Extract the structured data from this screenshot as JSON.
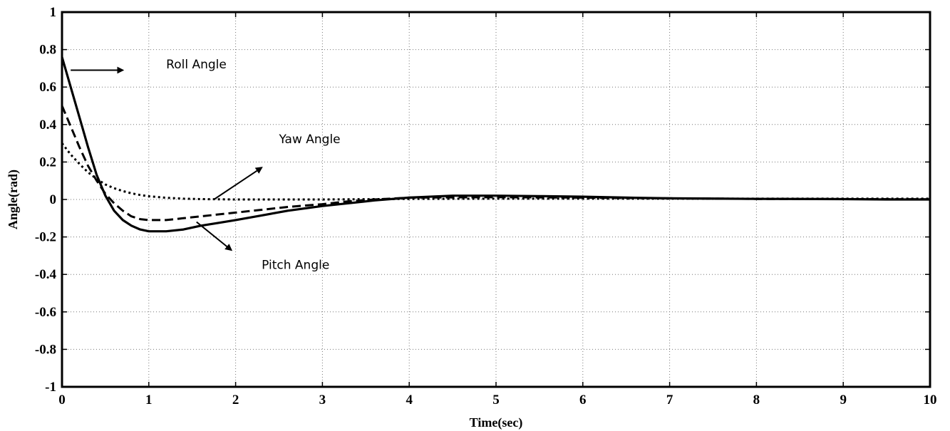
{
  "chart_data": {
    "type": "line",
    "title": "",
    "xlabel": "Time(sec)",
    "ylabel": "Angle(rad)",
    "xlim": [
      0,
      10
    ],
    "ylim": [
      -1,
      1
    ],
    "grid": true,
    "xticks": [
      "0",
      "1",
      "2",
      "3",
      "4",
      "5",
      "6",
      "7",
      "8",
      "9",
      "10"
    ],
    "yticks": [
      "1",
      "0.8",
      "0.6",
      "0.4",
      "0.2",
      "0",
      "-0.2",
      "-0.4",
      "-0.6",
      "-0.8",
      "-1"
    ],
    "series": [
      {
        "name": "Roll Angle",
        "style": "solid",
        "x": [
          0,
          0.1,
          0.2,
          0.3,
          0.4,
          0.5,
          0.6,
          0.7,
          0.8,
          0.9,
          1.0,
          1.1,
          1.2,
          1.4,
          1.6,
          1.8,
          2.0,
          2.3,
          2.6,
          3.0,
          3.3,
          3.6,
          4.0,
          4.5,
          5.0,
          5.5,
          6.0,
          6.5,
          7.0,
          8.0,
          9.0,
          9.5,
          10.0
        ],
        "y": [
          0.76,
          0.6,
          0.44,
          0.28,
          0.13,
          0.02,
          -0.06,
          -0.11,
          -0.14,
          -0.16,
          -0.17,
          -0.17,
          -0.17,
          -0.16,
          -0.14,
          -0.125,
          -0.11,
          -0.085,
          -0.06,
          -0.035,
          -0.02,
          -0.005,
          0.01,
          0.02,
          0.02,
          0.018,
          0.015,
          0.01,
          0.006,
          0.003,
          0.002,
          0.0,
          0.0
        ]
      },
      {
        "name": "Pitch Angle",
        "style": "dashed",
        "x": [
          0,
          0.1,
          0.2,
          0.3,
          0.4,
          0.5,
          0.6,
          0.7,
          0.8,
          0.9,
          1.0,
          1.2,
          1.4,
          1.6,
          1.8,
          2.0,
          2.3,
          2.6,
          3.0,
          3.3,
          3.6,
          4.0,
          5.0,
          6.0,
          7.0,
          8.0,
          10.0
        ],
        "y": [
          0.5,
          0.39,
          0.28,
          0.18,
          0.1,
          0.03,
          -0.02,
          -0.06,
          -0.09,
          -0.105,
          -0.11,
          -0.11,
          -0.1,
          -0.09,
          -0.08,
          -0.07,
          -0.055,
          -0.04,
          -0.025,
          -0.01,
          0.0,
          0.01,
          0.012,
          0.01,
          0.006,
          0.003,
          0.001
        ]
      },
      {
        "name": "Yaw Angle",
        "style": "dotted",
        "x": [
          0,
          0.1,
          0.2,
          0.3,
          0.4,
          0.5,
          0.6,
          0.7,
          0.8,
          0.9,
          1.0,
          1.2,
          1.4,
          1.6,
          1.8,
          2.0,
          2.5,
          3.0,
          4.0,
          5.0,
          6.0,
          7.0,
          8.0,
          10.0
        ],
        "y": [
          0.3,
          0.24,
          0.19,
          0.145,
          0.11,
          0.08,
          0.06,
          0.045,
          0.033,
          0.024,
          0.017,
          0.009,
          0.004,
          0.002,
          0.001,
          0.0,
          0.0,
          0.0,
          0.003,
          0.004,
          0.004,
          0.004,
          0.004,
          0.004
        ]
      }
    ],
    "annotations": [
      {
        "text": "Roll Angle",
        "x": 1.2,
        "y": 0.7,
        "arrow_from": [
          0.1,
          0.69
        ],
        "arrow_to": [
          0.7,
          0.69
        ]
      },
      {
        "text": "Yaw Angle",
        "x": 2.5,
        "y": 0.3,
        "arrow_from": [
          1.75,
          0.0
        ],
        "arrow_to": [
          2.3,
          0.17
        ]
      },
      {
        "text": "Pitch Angle",
        "x": 2.3,
        "y": -0.37,
        "arrow_from": [
          1.55,
          -0.12
        ],
        "arrow_to": [
          1.95,
          -0.27
        ]
      }
    ]
  }
}
